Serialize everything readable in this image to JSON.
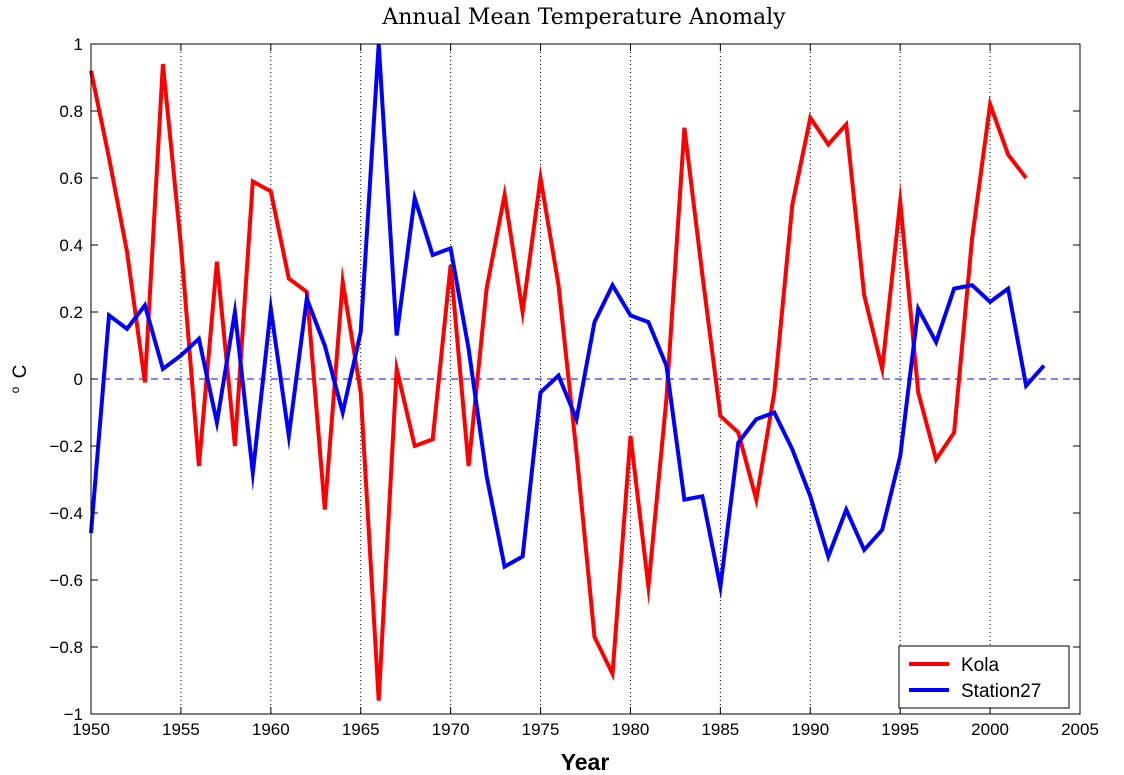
{
  "chart_data": {
    "type": "line",
    "title": "Annual Mean Temperature Anomaly",
    "xlabel": "Year",
    "ylabel_superscript": "o",
    "ylabel": "C",
    "xlim": [
      1950,
      2005
    ],
    "ylim": [
      -1,
      1
    ],
    "xticks": [
      "1950",
      "1955",
      "1960",
      "1965",
      "1970",
      "1975",
      "1980",
      "1985",
      "1990",
      "1995",
      "2000",
      "2005"
    ],
    "yticks": [
      "1",
      "0.8",
      "0.6",
      "0.4",
      "0.2",
      "0",
      "−0.2",
      "−0.4",
      "−0.6",
      "−0.8",
      "−1"
    ],
    "vertical_dotted_grid": true,
    "zero_reference_line": "dashed",
    "legend_position": "bottom-right",
    "series": [
      {
        "name": "Kola",
        "color": "#ff0000",
        "x": [
          1950,
          1951,
          1952,
          1953,
          1954,
          1955,
          1956,
          1957,
          1958,
          1959,
          1960,
          1961,
          1962,
          1963,
          1964,
          1965,
          1966,
          1967,
          1968,
          1969,
          1970,
          1971,
          1972,
          1973,
          1974,
          1975,
          1976,
          1977,
          1978,
          1979,
          1980,
          1981,
          1982,
          1983,
          1984,
          1985,
          1986,
          1987,
          1988,
          1989,
          1990,
          1991,
          1992,
          1993,
          1994,
          1995,
          1996,
          1997,
          1998,
          1999,
          2000,
          2001,
          2002
        ],
        "values": [
          0.92,
          0.66,
          0.38,
          -0.01,
          0.94,
          0.4,
          -0.26,
          0.35,
          -0.2,
          0.59,
          0.56,
          0.3,
          0.26,
          -0.39,
          0.29,
          -0.04,
          -0.96,
          0.03,
          -0.2,
          -0.18,
          0.34,
          -0.26,
          0.27,
          0.55,
          0.2,
          0.6,
          0.28,
          -0.22,
          -0.77,
          -0.88,
          -0.17,
          -0.62,
          -0.06,
          0.75,
          0.31,
          -0.11,
          -0.16,
          -0.36,
          -0.04,
          0.52,
          0.78,
          0.7,
          0.76,
          0.25,
          0.03,
          0.53,
          -0.04,
          -0.24,
          -0.16,
          0.42,
          0.82,
          0.67,
          0.6
        ]
      },
      {
        "name": "Station27",
        "color": "#0000ff",
        "x": [
          1950,
          1951,
          1952,
          1953,
          1954,
          1955,
          1956,
          1957,
          1958,
          1959,
          1960,
          1961,
          1962,
          1963,
          1964,
          1965,
          1966,
          1967,
          1968,
          1969,
          1970,
          1971,
          1972,
          1973,
          1974,
          1975,
          1976,
          1977,
          1978,
          1979,
          1980,
          1981,
          1982,
          1983,
          1984,
          1985,
          1986,
          1987,
          1988,
          1989,
          1990,
          1991,
          1992,
          1993,
          1994,
          1995,
          1996,
          1997,
          1998,
          1999,
          2000,
          2001,
          2002,
          2003
        ],
        "values": [
          -0.46,
          0.19,
          0.15,
          0.22,
          0.03,
          0.07,
          0.12,
          -0.13,
          0.2,
          -0.28,
          0.21,
          -0.17,
          0.24,
          0.1,
          -0.1,
          0.14,
          1.0,
          0.13,
          0.54,
          0.37,
          0.39,
          0.09,
          -0.29,
          -0.56,
          -0.53,
          -0.04,
          0.01,
          -0.12,
          0.17,
          0.28,
          0.19,
          0.17,
          0.04,
          -0.36,
          -0.35,
          -0.62,
          -0.19,
          -0.12,
          -0.1,
          -0.21,
          -0.35,
          -0.53,
          -0.39,
          -0.51,
          -0.45,
          -0.23,
          0.21,
          0.11,
          0.27,
          0.28,
          0.23,
          0.27,
          -0.02,
          0.04
        ]
      }
    ]
  }
}
